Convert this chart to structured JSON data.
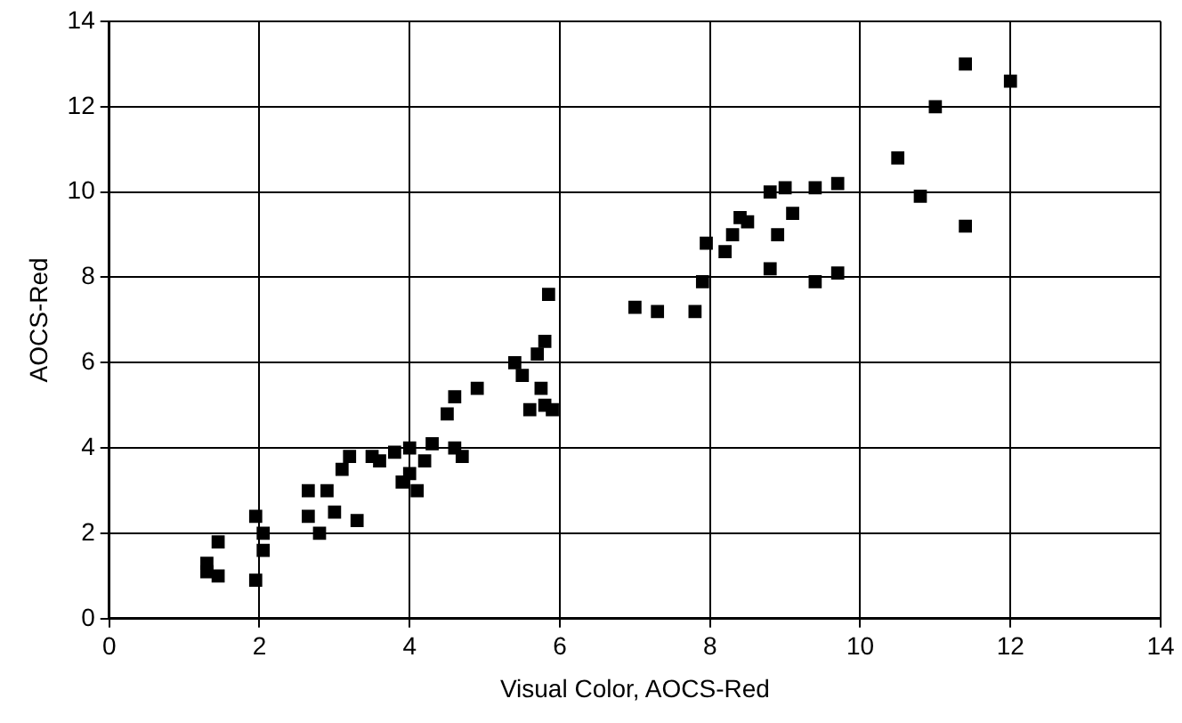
{
  "chart_data": {
    "type": "scatter",
    "xlabel": "Visual Color, AOCS-Red",
    "ylabel": "AOCS-Red",
    "xlim": [
      0,
      14
    ],
    "ylim": [
      0,
      14
    ],
    "xticks": [
      0,
      2,
      4,
      6,
      8,
      10,
      12,
      14
    ],
    "yticks": [
      0,
      2,
      4,
      6,
      8,
      10,
      12,
      14
    ],
    "grid": true,
    "legend": false,
    "marker": "square",
    "series": [
      {
        "color": "#000000",
        "x": [
          1.3,
          1.3,
          1.45,
          1.45,
          1.95,
          1.95,
          2.05,
          2.05,
          2.65,
          2.65,
          2.8,
          2.9,
          3.0,
          3.1,
          3.2,
          3.3,
          3.5,
          3.6,
          3.8,
          3.9,
          4.0,
          4.0,
          4.1,
          4.2,
          4.3,
          4.5,
          4.6,
          4.6,
          4.7,
          4.9,
          5.4,
          5.5,
          5.6,
          5.7,
          5.75,
          5.8,
          5.85,
          5.9,
          5.8,
          7.0,
          7.3,
          7.8,
          7.9,
          7.95,
          8.2,
          8.3,
          8.4,
          8.5,
          8.8,
          8.8,
          8.9,
          9.0,
          9.1,
          9.4,
          9.4,
          9.7,
          9.7,
          10.5,
          10.8,
          11.0,
          11.4,
          11.4,
          12.0
        ],
        "values": [
          1.3,
          1.1,
          1.8,
          1.0,
          2.4,
          0.9,
          2.0,
          1.6,
          3.0,
          2.4,
          2.0,
          3.0,
          2.5,
          3.5,
          3.8,
          2.3,
          3.8,
          3.7,
          3.9,
          3.2,
          4.0,
          3.4,
          3.0,
          3.7,
          4.1,
          4.8,
          5.2,
          4.0,
          3.8,
          5.4,
          6.0,
          5.7,
          4.9,
          6.2,
          5.4,
          6.5,
          7.6,
          4.9,
          5.0,
          7.3,
          7.2,
          7.2,
          7.9,
          8.8,
          8.6,
          9.0,
          9.4,
          9.3,
          10.0,
          8.2,
          9.0,
          10.1,
          9.5,
          10.1,
          7.9,
          10.2,
          8.1,
          10.8,
          9.9,
          12.0,
          13.0,
          9.2,
          12.6
        ]
      }
    ]
  }
}
